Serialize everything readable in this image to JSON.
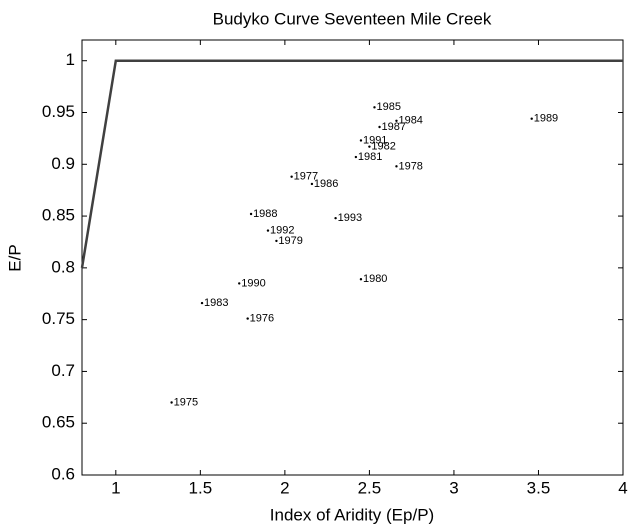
{
  "chart_data": {
    "type": "scatter",
    "title": "Budyko Curve Seventeen Mile Creek",
    "x_label": "Index of Aridity (Ep/P)",
    "y_label": "E/P",
    "x": [
      1.33,
      1.51,
      1.78,
      1.73,
      1.8,
      1.9,
      1.95,
      2.04,
      2.16,
      2.3,
      2.45,
      2.42,
      2.53,
      2.66,
      2.56,
      2.45,
      2.5,
      2.66,
      3.46
    ],
    "values": [
      0.67,
      0.766,
      0.751,
      0.785,
      0.852,
      0.836,
      0.826,
      0.888,
      0.881,
      0.848,
      0.789,
      0.907,
      0.955,
      0.942,
      0.936,
      0.923,
      0.917,
      0.898,
      0.944
    ],
    "labels": [
      "1975",
      "1983",
      "1976",
      "1990",
      "1988",
      "1992",
      "1979",
      "1977",
      "1986",
      "1993",
      "1980",
      "1981",
      "1985",
      "1984",
      "1987",
      "1991",
      "1982",
      "1978",
      "1989"
    ],
    "color": "#000000",
    "curve": {
      "x": [
        0.8,
        1,
        4
      ],
      "y": [
        0.8,
        1,
        1
      ],
      "color": "#404040"
    },
    "xlim": [
      0.8,
      4
    ],
    "ylim": [
      0.6,
      1.02
    ],
    "xticks": [
      1,
      1.5,
      2,
      2.5,
      3,
      3.5,
      4
    ],
    "yticks": [
      0.6,
      0.65,
      0.7,
      0.75,
      0.8,
      0.85,
      0.9,
      0.95,
      1
    ],
    "grid": false
  }
}
